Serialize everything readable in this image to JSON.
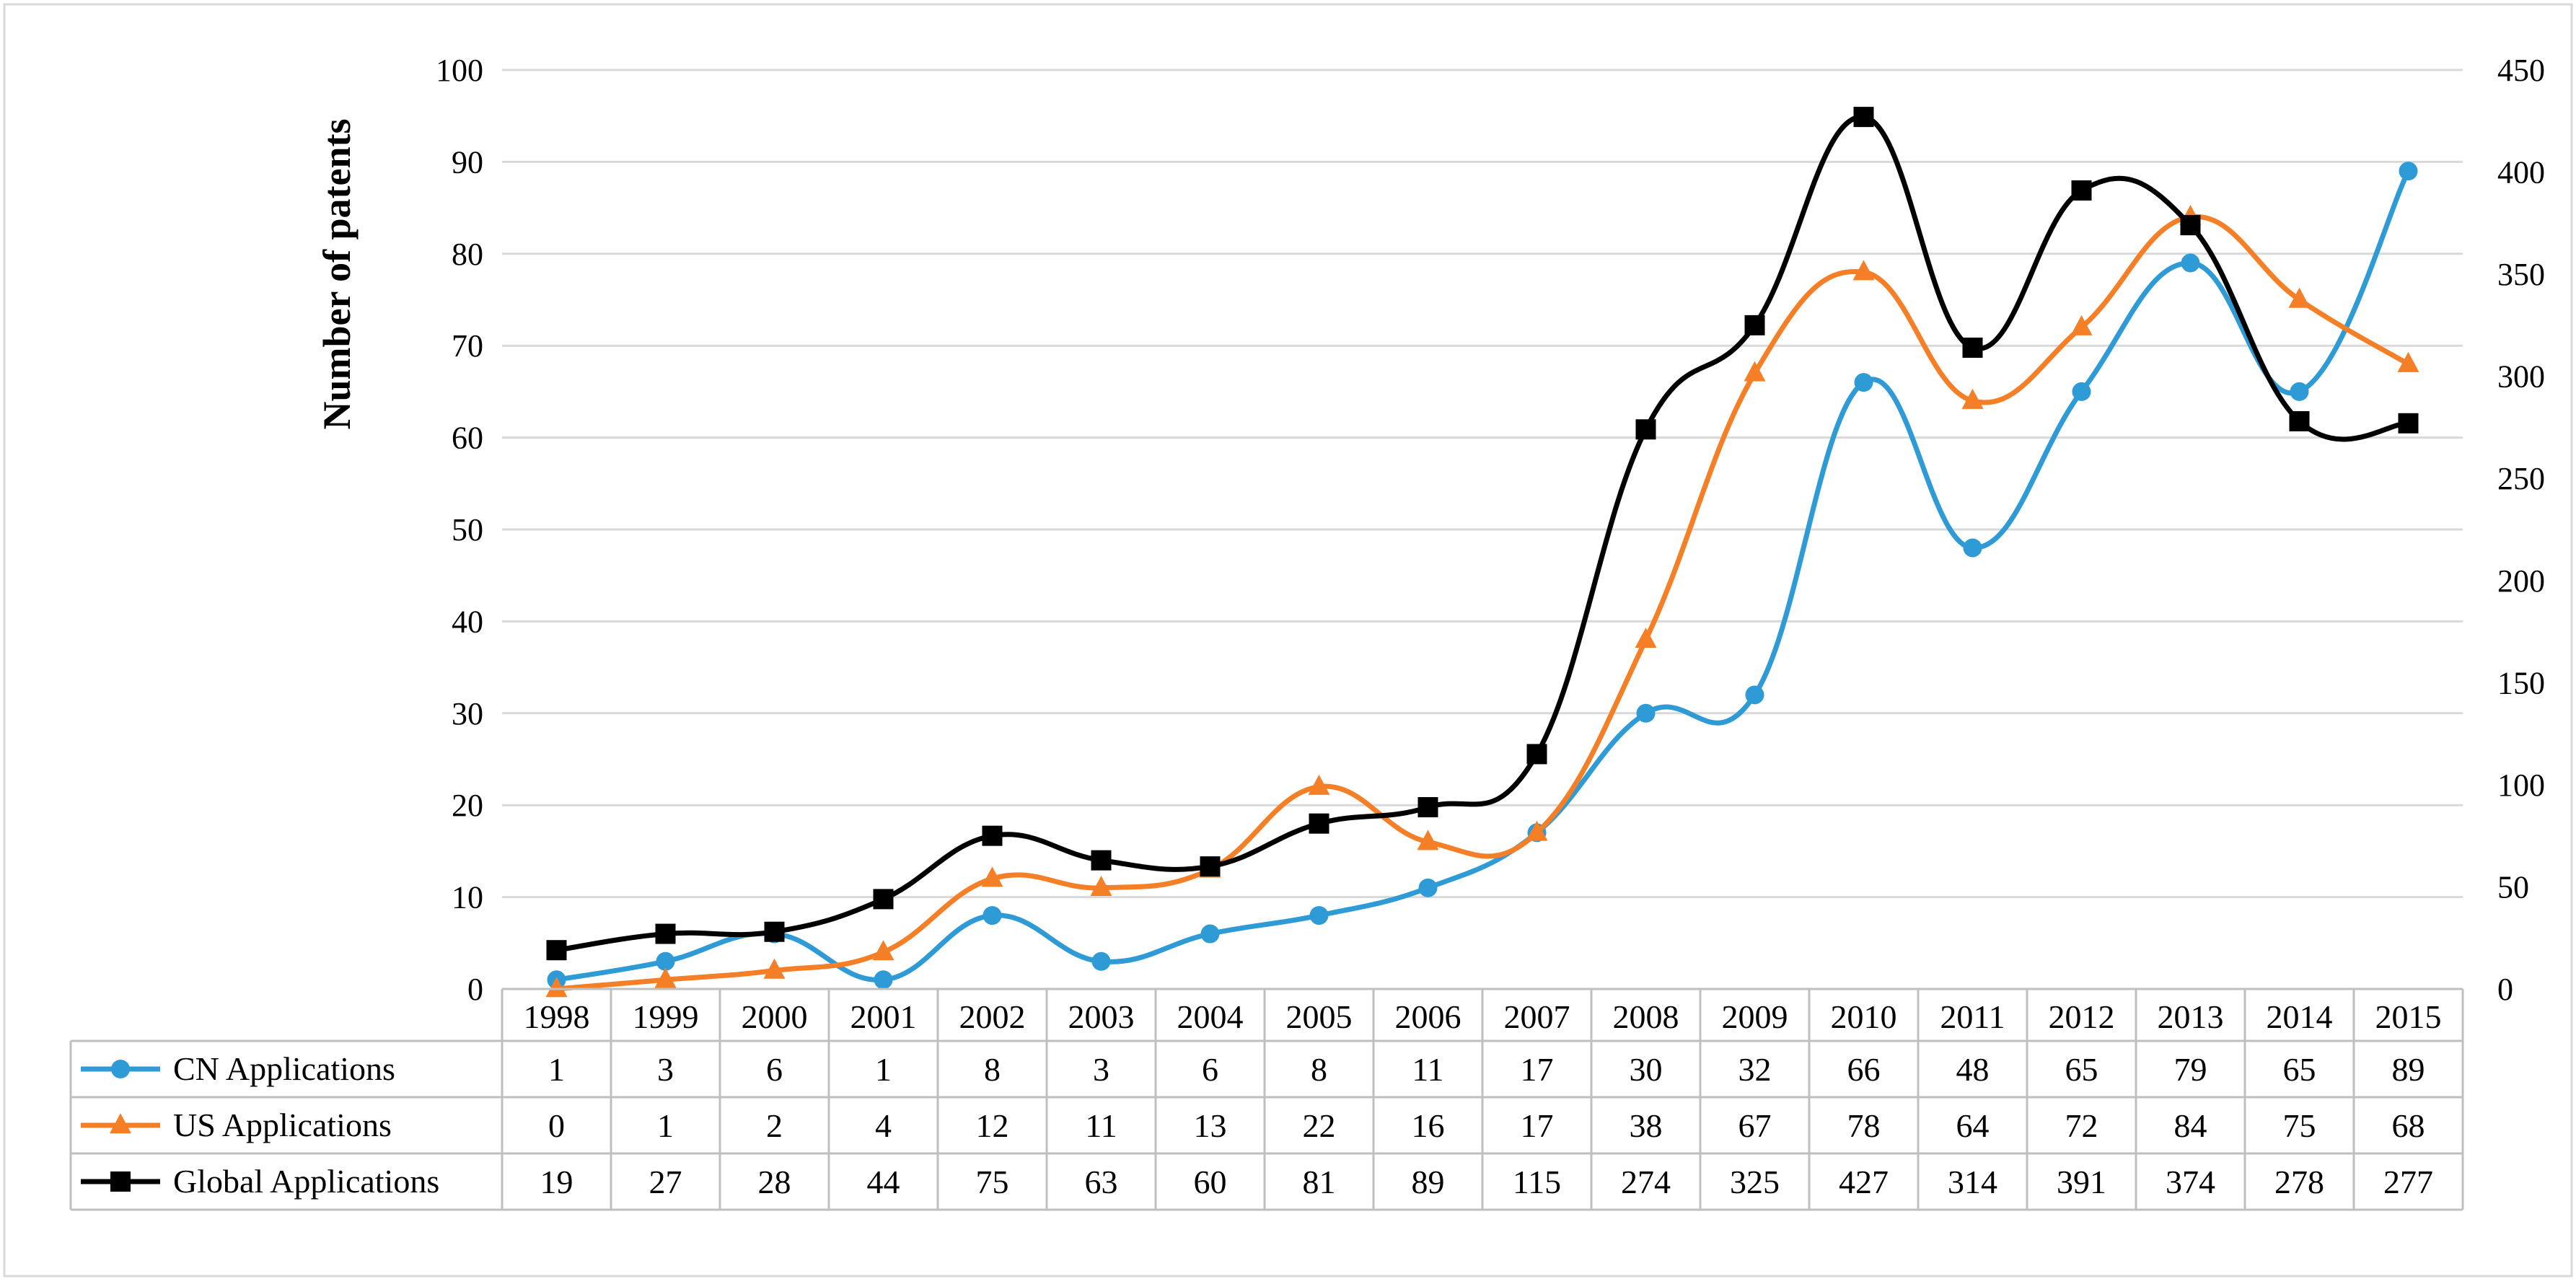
{
  "chart_data": {
    "type": "line",
    "title": "",
    "xlabel": "",
    "ylabel": "Number of patents",
    "ylim": [
      0,
      100
    ],
    "y2lim": [
      0,
      450
    ],
    "yticks": [
      "0",
      "10",
      "20",
      "30",
      "40",
      "50",
      "60",
      "70",
      "80",
      "90",
      "100"
    ],
    "y2ticks": [
      "0",
      "50",
      "100",
      "150",
      "200",
      "250",
      "300",
      "350",
      "400",
      "450"
    ],
    "categories": [
      "1998",
      "1999",
      "2000",
      "2001",
      "2002",
      "2003",
      "2004",
      "2005",
      "2006",
      "2007",
      "2008",
      "2009",
      "2010",
      "2011",
      "2012",
      "2013",
      "2014",
      "2015"
    ],
    "series": [
      {
        "name": "CN Applications",
        "axis": "left",
        "marker": "circle",
        "color": "#2E9AD6",
        "values": [
          1,
          3,
          6,
          1,
          8,
          3,
          6,
          8,
          11,
          17,
          30,
          32,
          66,
          48,
          65,
          79,
          65,
          89
        ]
      },
      {
        "name": "US Applications",
        "axis": "left",
        "marker": "triangle",
        "color": "#F57F26",
        "values": [
          0,
          1,
          2,
          4,
          12,
          11,
          13,
          22,
          16,
          17,
          38,
          67,
          78,
          64,
          72,
          84,
          75,
          68
        ]
      },
      {
        "name": "Global Applications",
        "axis": "right",
        "marker": "square",
        "color": "#000000",
        "values": [
          19,
          27,
          28,
          44,
          75,
          63,
          60,
          81,
          89,
          115,
          274,
          325,
          427,
          314,
          391,
          374,
          278,
          277
        ]
      }
    ],
    "grid": true,
    "legend": "data-table-below"
  }
}
